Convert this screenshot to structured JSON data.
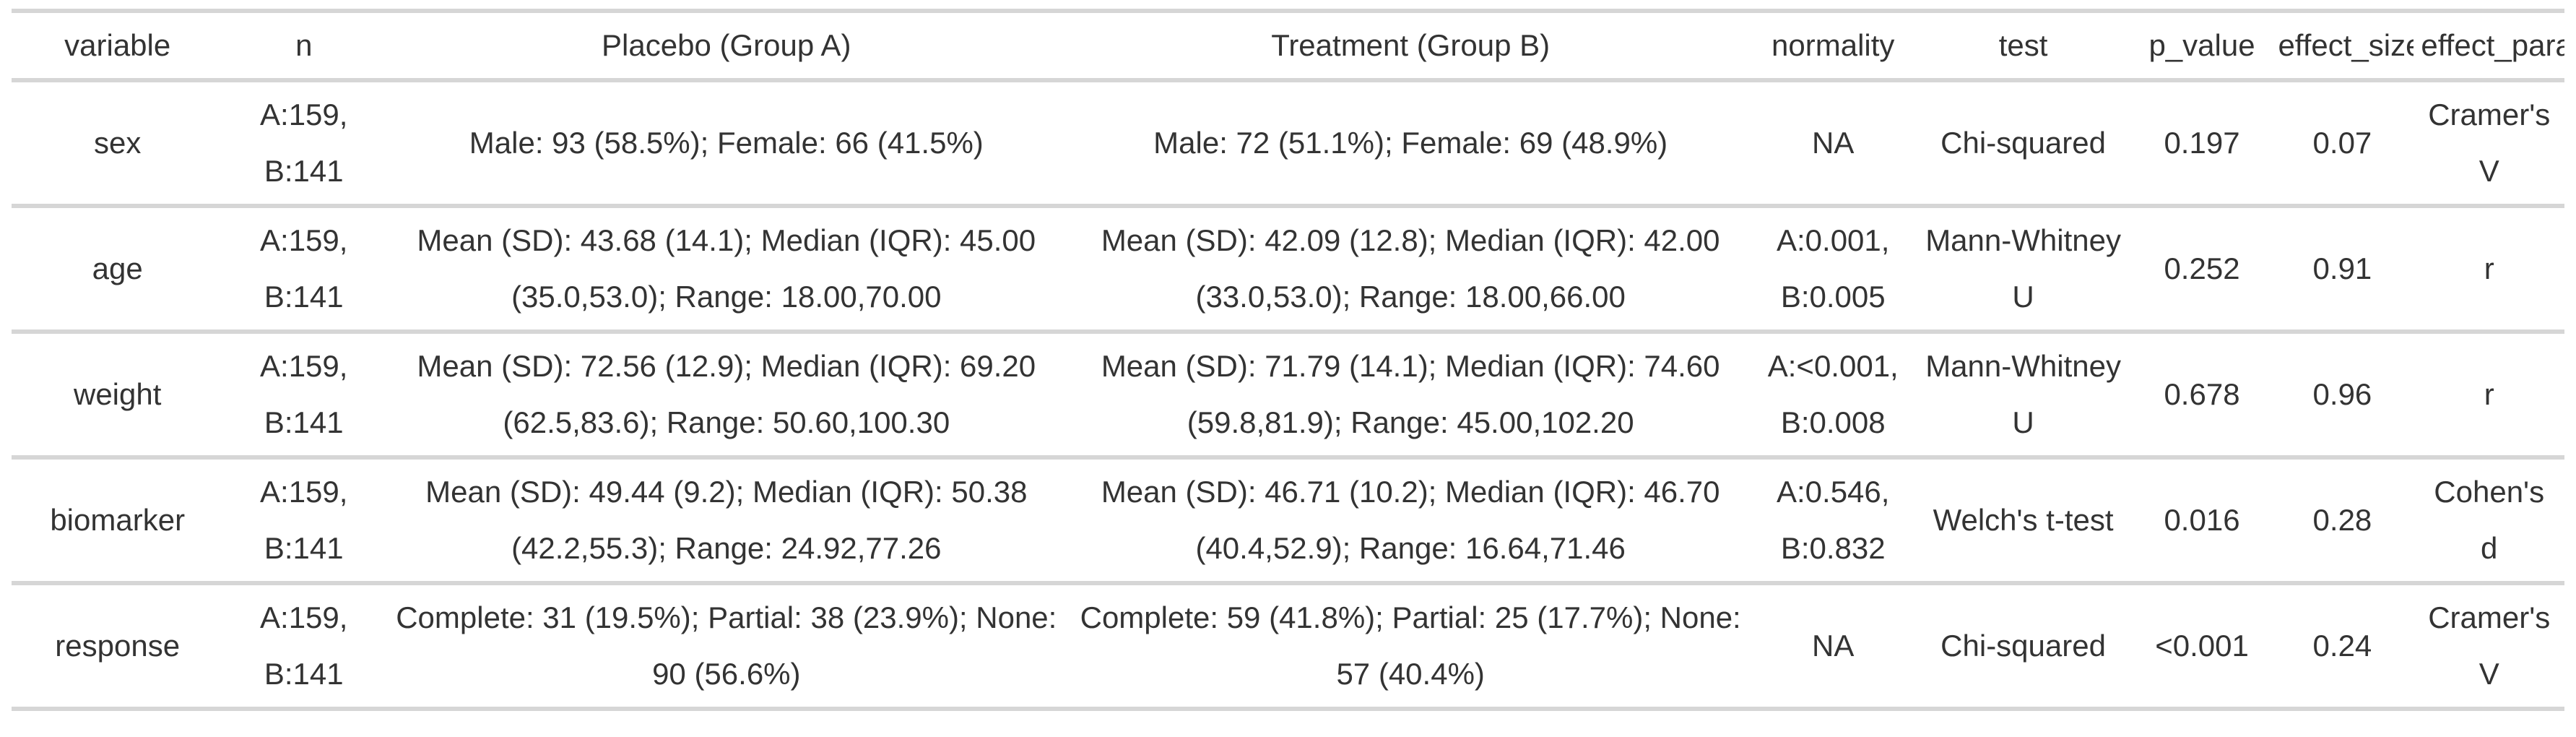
{
  "chart_data": {
    "type": "table",
    "title": "",
    "columns": [
      {
        "key": "variable",
        "label": "variable"
      },
      {
        "key": "n",
        "label": "n"
      },
      {
        "key": "placebo",
        "label": "Placebo (Group A)"
      },
      {
        "key": "treatment",
        "label": "Treatment (Group B)"
      },
      {
        "key": "normality",
        "label": "normality"
      },
      {
        "key": "test",
        "label": "test"
      },
      {
        "key": "p_value",
        "label": "p_value"
      },
      {
        "key": "effect_size",
        "label": "effect_size"
      },
      {
        "key": "effect_param",
        "label": "effect_param"
      }
    ],
    "rows": [
      {
        "variable": "sex",
        "n": "A:159, B:141",
        "placebo": "Male: 93 (58.5%); Female: 66 (41.5%)",
        "treatment": "Male: 72 (51.1%); Female: 69 (48.9%)",
        "normality": "NA",
        "test": "Chi-squared",
        "p_value": "0.197",
        "effect_size": "0.07",
        "effect_param": "Cramer's V"
      },
      {
        "variable": "age",
        "n": "A:159, B:141",
        "placebo": "Mean (SD): 43.68 (14.1); Median (IQR): 45.00 (35.0,53.0); Range: 18.00,70.00",
        "treatment": "Mean (SD): 42.09 (12.8); Median (IQR): 42.00 (33.0,53.0); Range: 18.00,66.00",
        "normality": "A:0.001, B:0.005",
        "test": "Mann-Whitney U",
        "p_value": "0.252",
        "effect_size": "0.91",
        "effect_param": "r"
      },
      {
        "variable": "weight",
        "n": "A:159, B:141",
        "placebo": "Mean (SD): 72.56 (12.9); Median (IQR): 69.20 (62.5,83.6); Range: 50.60,100.30",
        "treatment": "Mean (SD): 71.79 (14.1); Median (IQR): 74.60 (59.8,81.9); Range: 45.00,102.20",
        "normality": "A:<0.001, B:0.008",
        "test": "Mann-Whitney U",
        "p_value": "0.678",
        "effect_size": "0.96",
        "effect_param": "r"
      },
      {
        "variable": "biomarker",
        "n": "A:159, B:141",
        "placebo": "Mean (SD): 49.44 (9.2); Median (IQR): 50.38 (42.2,55.3); Range: 24.92,77.26",
        "treatment": "Mean (SD): 46.71 (10.2); Median (IQR): 46.70 (40.4,52.9); Range: 16.64,71.46",
        "normality": "A:0.546, B:0.832",
        "test": "Welch's t-test",
        "p_value": "0.016",
        "effect_size": "0.28",
        "effect_param": "Cohen's d"
      },
      {
        "variable": "response",
        "n": "A:159, B:141",
        "placebo": "Complete: 31 (19.5%); Partial: 38 (23.9%); None: 90 (56.6%)",
        "treatment": "Complete: 59 (41.8%); Partial: 25 (17.7%); None: 57 (40.4%)",
        "normality": "NA",
        "test": "Chi-squared",
        "p_value": "<0.001",
        "effect_size": "0.24",
        "effect_param": "Cramer's V"
      }
    ],
    "layout": {
      "grid": "horizontal-rules-only",
      "header_position": "top",
      "cell_align": "center"
    },
    "colors": {
      "background": "#ffffff",
      "text": "#333333",
      "divider": "#d6d6d6"
    }
  }
}
